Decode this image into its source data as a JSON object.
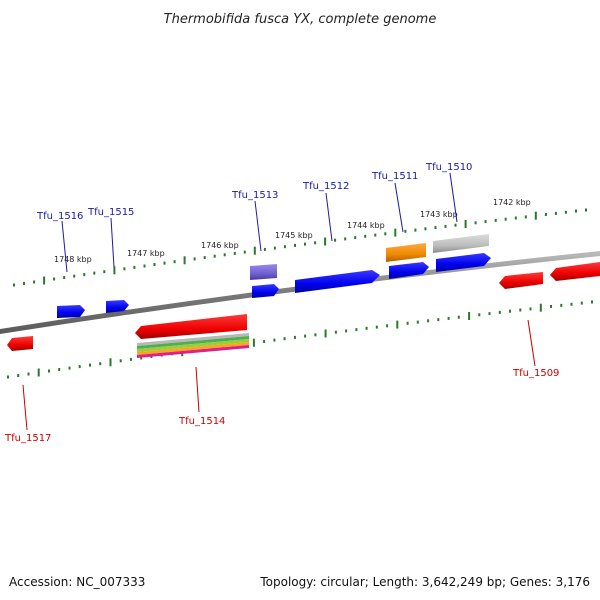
{
  "title": "Thermobifida fusca YX, complete genome",
  "footer": {
    "accession": "Accession: NC_007333",
    "summary": "Topology: circular; Length: 3,642,249 bp; Genes: 3,176"
  },
  "colors": {
    "forward_label": "#1a1aa6",
    "reverse_label": "#cc0000",
    "tick": "#2a7a2a",
    "backbone": "#8a8a8a"
  },
  "ruler_labels": [
    "1742 kbp",
    "1743 kbp",
    "1744 kbp",
    "1745 kbp",
    "1746 kbp",
    "1747 kbp",
    "1748 kbp"
  ],
  "genes": [
    {
      "label": "Tfu_1516",
      "strand": "forward"
    },
    {
      "label": "Tfu_1515",
      "strand": "forward"
    },
    {
      "label": "Tfu_1513",
      "strand": "forward"
    },
    {
      "label": "Tfu_1512",
      "strand": "forward"
    },
    {
      "label": "Tfu_1511",
      "strand": "forward"
    },
    {
      "label": "Tfu_1510",
      "strand": "forward"
    },
    {
      "label": "Tfu_1517",
      "strand": "reverse"
    },
    {
      "label": "Tfu_1514",
      "strand": "reverse"
    },
    {
      "label": "Tfu_1509",
      "strand": "reverse"
    }
  ]
}
